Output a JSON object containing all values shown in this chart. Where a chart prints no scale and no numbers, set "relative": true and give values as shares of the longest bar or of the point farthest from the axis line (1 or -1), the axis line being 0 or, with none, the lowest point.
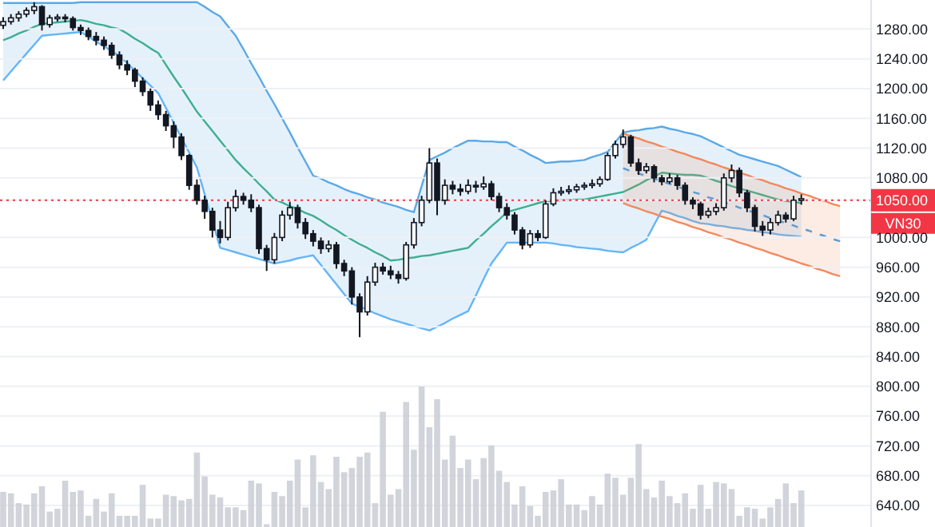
{
  "chart_data": [
    {
      "type": "candlestick",
      "categories": [
        null,
        null,
        null,
        null,
        null,
        null,
        null,
        null,
        null,
        null,
        null,
        null,
        null,
        null,
        null,
        null,
        null,
        null,
        null,
        null,
        null,
        null,
        null,
        null,
        null,
        null,
        null,
        null,
        null,
        null,
        null,
        null,
        null,
        null,
        null,
        null,
        null,
        null,
        null,
        null,
        null,
        null,
        null,
        null,
        null,
        null,
        null,
        null,
        null,
        null,
        null,
        null,
        null,
        null,
        null,
        null,
        null,
        null,
        null,
        null,
        null,
        null,
        null,
        null,
        null,
        null,
        null,
        null,
        null,
        null,
        null,
        null,
        null,
        null,
        null,
        null,
        null,
        null,
        null,
        null,
        null,
        null,
        null,
        null,
        null,
        null,
        null,
        null,
        null,
        null,
        null,
        null,
        null,
        null,
        null,
        null,
        null,
        null,
        null,
        null,
        null,
        null,
        null,
        null
      ],
      "ohlc": [
        [
          1285,
          1296,
          1280,
          1290
        ],
        [
          1290,
          1300,
          1286,
          1295
        ],
        [
          1295,
          1304,
          1290,
          1300
        ],
        [
          1300,
          1309,
          1296,
          1305
        ],
        [
          1305,
          1316,
          1300,
          1310
        ],
        [
          1310,
          1312,
          1278,
          1286
        ],
        [
          1286,
          1299,
          1282,
          1295
        ],
        [
          1295,
          1300,
          1290,
          1296
        ],
        [
          1296,
          1300,
          1289,
          1294
        ],
        [
          1294,
          1297,
          1278,
          1282
        ],
        [
          1282,
          1286,
          1272,
          1278
        ],
        [
          1278,
          1282,
          1265,
          1270
        ],
        [
          1270,
          1276,
          1258,
          1265
        ],
        [
          1265,
          1270,
          1252,
          1258
        ],
        [
          1258,
          1262,
          1240,
          1245
        ],
        [
          1245,
          1250,
          1226,
          1232
        ],
        [
          1232,
          1238,
          1218,
          1225
        ],
        [
          1225,
          1228,
          1202,
          1210
        ],
        [
          1210,
          1215,
          1190,
          1196
        ],
        [
          1196,
          1200,
          1170,
          1178
        ],
        [
          1178,
          1184,
          1158,
          1165
        ],
        [
          1165,
          1170,
          1143,
          1150
        ],
        [
          1150,
          1156,
          1120,
          1135
        ],
        [
          1135,
          1140,
          1104,
          1110
        ],
        [
          1110,
          1112,
          1064,
          1070
        ],
        [
          1070,
          1078,
          1044,
          1050
        ],
        [
          1050,
          1056,
          1025,
          1035
        ],
        [
          1035,
          1040,
          1000,
          1010
        ],
        [
          1010,
          1022,
          992,
          1000
        ],
        [
          1000,
          1048,
          996,
          1040
        ],
        [
          1040,
          1064,
          1035,
          1055
        ],
        [
          1055,
          1060,
          1044,
          1050
        ],
        [
          1050,
          1058,
          1034,
          1040
        ],
        [
          1040,
          1044,
          978,
          985
        ],
        [
          985,
          990,
          955,
          970
        ],
        [
          970,
          1006,
          965,
          1000
        ],
        [
          1000,
          1036,
          995,
          1030
        ],
        [
          1030,
          1048,
          1024,
          1040
        ],
        [
          1040,
          1044,
          1012,
          1020
        ],
        [
          1020,
          1026,
          998,
          1005
        ],
        [
          1005,
          1010,
          988,
          995
        ],
        [
          995,
          1000,
          978,
          985
        ],
        [
          985,
          996,
          980,
          990
        ],
        [
          990,
          994,
          958,
          965
        ],
        [
          965,
          970,
          948,
          955
        ],
        [
          955,
          960,
          910,
          920
        ],
        [
          920,
          925,
          866,
          900
        ],
        [
          900,
          948,
          895,
          940
        ],
        [
          940,
          966,
          935,
          960
        ],
        [
          960,
          966,
          950,
          955
        ],
        [
          955,
          962,
          944,
          950
        ],
        [
          950,
          955,
          938,
          945
        ],
        [
          945,
          994,
          942,
          990
        ],
        [
          990,
          1026,
          985,
          1020
        ],
        [
          1020,
          1056,
          1015,
          1050
        ],
        [
          1050,
          1120,
          1046,
          1100
        ],
        [
          1100,
          1106,
          1030,
          1050
        ],
        [
          1050,
          1078,
          1044,
          1070
        ],
        [
          1070,
          1076,
          1058,
          1065
        ],
        [
          1065,
          1072,
          1056,
          1062
        ],
        [
          1062,
          1078,
          1058,
          1070
        ],
        [
          1070,
          1076,
          1060,
          1068
        ],
        [
          1068,
          1082,
          1064,
          1072
        ],
        [
          1072,
          1076,
          1050,
          1055
        ],
        [
          1055,
          1060,
          1034,
          1040
        ],
        [
          1040,
          1046,
          1024,
          1030
        ],
        [
          1030,
          1034,
          1004,
          1010
        ],
        [
          1010,
          1014,
          984,
          990
        ],
        [
          990,
          1010,
          986,
          1005
        ],
        [
          1005,
          1010,
          995,
          1000
        ],
        [
          1000,
          1050,
          998,
          1045
        ],
        [
          1045,
          1066,
          1042,
          1060
        ],
        [
          1060,
          1068,
          1056,
          1062
        ],
        [
          1062,
          1070,
          1058,
          1064
        ],
        [
          1064,
          1072,
          1060,
          1068
        ],
        [
          1068,
          1074,
          1064,
          1070
        ],
        [
          1070,
          1078,
          1066,
          1072
        ],
        [
          1072,
          1082,
          1068,
          1078
        ],
        [
          1078,
          1114,
          1076,
          1110
        ],
        [
          1110,
          1130,
          1106,
          1125
        ],
        [
          1125,
          1145,
          1120,
          1135
        ],
        [
          1135,
          1138,
          1095,
          1100
        ],
        [
          1100,
          1106,
          1084,
          1090
        ],
        [
          1090,
          1100,
          1086,
          1095
        ],
        [
          1095,
          1098,
          1074,
          1080
        ],
        [
          1080,
          1084,
          1070,
          1075
        ],
        [
          1075,
          1086,
          1072,
          1080
        ],
        [
          1080,
          1084,
          1064,
          1070
        ],
        [
          1070,
          1074,
          1044,
          1050
        ],
        [
          1050,
          1054,
          1038,
          1045
        ],
        [
          1045,
          1048,
          1024,
          1030
        ],
        [
          1030,
          1040,
          1026,
          1035
        ],
        [
          1035,
          1046,
          1030,
          1040
        ],
        [
          1040,
          1086,
          1036,
          1080
        ],
        [
          1080,
          1098,
          1074,
          1090
        ],
        [
          1090,
          1094,
          1054,
          1060
        ],
        [
          1060,
          1064,
          1034,
          1040
        ],
        [
          1040,
          1044,
          1008,
          1015
        ],
        [
          1015,
          1022,
          1002,
          1010
        ],
        [
          1010,
          1026,
          1004,
          1020
        ],
        [
          1020,
          1036,
          1016,
          1030
        ],
        [
          1030,
          1034,
          1020,
          1025
        ],
        [
          1025,
          1056,
          1022,
          1050
        ],
        [
          1050,
          1058,
          1044,
          1052
        ]
      ],
      "ylim": [
        611,
        1319
      ],
      "yticks": [
        {
          "value": 640,
          "label": "640.00"
        },
        {
          "value": 680,
          "label": "680.00"
        },
        {
          "value": 720,
          "label": "720.00"
        },
        {
          "value": 760,
          "label": "760.00"
        },
        {
          "value": 800,
          "label": "800.00"
        },
        {
          "value": 840,
          "label": "840.00"
        },
        {
          "value": 880,
          "label": "880.00"
        },
        {
          "value": 920,
          "label": "920.00"
        },
        {
          "value": 960,
          "label": "960.00"
        },
        {
          "value": 1000,
          "label": "1000.00"
        },
        {
          "value": 1050,
          "label": "1050.00"
        },
        {
          "value": 1080,
          "label": "1080.00"
        },
        {
          "value": 1120,
          "label": "1120.00"
        },
        {
          "value": 1160,
          "label": "1160.00"
        },
        {
          "value": 1200,
          "label": "1200.00"
        },
        {
          "value": 1240,
          "label": "1240.00"
        },
        {
          "value": 1280,
          "label": "1280.00"
        }
      ],
      "ref_lines": [
        {
          "axis": "y",
          "value": 1050,
          "label": "VN30",
          "color": "#f23645",
          "line_style": "dotted"
        }
      ],
      "grid": "y",
      "tick_labels": "y"
    },
    {
      "type": "line",
      "categories": [
        null,
        null,
        null,
        null,
        null,
        null,
        null,
        null,
        null,
        null,
        null,
        null,
        null,
        null,
        null,
        null,
        null,
        null,
        null,
        null,
        null,
        null,
        null,
        null,
        null,
        null,
        null,
        null,
        null,
        null,
        null,
        null,
        null,
        null,
        null,
        null,
        null,
        null,
        null,
        null,
        null,
        null,
        null,
        null,
        null,
        null,
        null,
        null,
        null,
        null,
        null,
        null,
        null,
        null,
        null,
        null,
        null,
        null,
        null,
        null,
        null,
        null,
        null,
        null,
        null,
        null,
        null,
        null,
        null,
        null,
        null,
        null,
        null,
        null,
        null,
        null,
        null,
        null,
        null,
        null,
        null,
        null,
        null,
        null,
        null,
        null,
        null,
        null,
        null,
        null,
        null,
        null,
        null,
        null,
        null,
        null,
        null,
        null,
        null,
        null,
        null,
        null,
        null,
        null
      ],
      "ylim": [
        611,
        1319
      ],
      "tick_labels": false,
      "series": [
        {
          "color": "#5aa9e6",
          "values": [
            1315,
            1315,
            1315,
            1315,
            1315,
            1315,
            1315,
            1315,
            1315,
            1315,
            1316,
            1316,
            1316,
            1316,
            1316,
            1316,
            1316,
            1316,
            1316,
            1316,
            1316,
            1316,
            1316,
            1316,
            1316,
            1316,
            1310,
            1303,
            1297,
            1284,
            1271,
            1253,
            1234,
            1216,
            1197,
            1179,
            1160,
            1141,
            1121,
            1102,
            1083,
            1079,
            1074,
            1070,
            1065,
            1061,
            1058,
            1054,
            1051,
            1047,
            1044,
            1041,
            1037,
            1034,
            1069,
            1104,
            1109,
            1114,
            1120,
            1125,
            1130,
            1130,
            1129,
            1129,
            1128,
            1128,
            1122,
            1117,
            1111,
            1106,
            1100,
            1101,
            1102,
            1102,
            1103,
            1104,
            1108,
            1111,
            1115,
            1128,
            1141,
            1143,
            1144,
            1146,
            1147,
            1149,
            1146,
            1144,
            1141,
            1139,
            1136,
            1131,
            1126,
            1121,
            1116,
            1111,
            1108,
            1105,
            1102,
            1099,
            1096,
            1091,
            1086,
            1081
          ],
          "lower": [
            1211,
            1223,
            1235,
            1247,
            1259,
            1271,
            1272,
            1273,
            1274,
            1275,
            1276,
            1270,
            1263,
            1257,
            1250,
            1244,
            1234,
            1224,
            1214,
            1204,
            1194,
            1174,
            1154,
            1134,
            1114,
            1094,
            1058,
            1022,
            986,
            983,
            980,
            977,
            974,
            971,
            968,
            965,
            967,
            969,
            972,
            974,
            976,
            963,
            950,
            937,
            924,
            911,
            907,
            903,
            898,
            894,
            890,
            887,
            884,
            881,
            878,
            875,
            880,
            885,
            891,
            896,
            901,
            922,
            944,
            965,
            979,
            993,
            993,
            993,
            993,
            993,
            993,
            992,
            990,
            989,
            987,
            986,
            985,
            984,
            982,
            981,
            980,
            986,
            991,
            997,
            1017,
            1036,
            1033,
            1029,
            1026,
            1022,
            1019,
            1018,
            1016,
            1015,
            1013,
            1012,
            1010,
            1009,
            1007,
            1006,
            1004,
            1003,
            1002,
            1001
          ],
          "upper": [
            1315,
            1315,
            1315,
            1315,
            1315,
            1315,
            1315,
            1315,
            1315,
            1315,
            1316,
            1316,
            1316,
            1316,
            1316,
            1316,
            1316,
            1316,
            1316,
            1316,
            1316,
            1316,
            1316,
            1316,
            1316,
            1316,
            1310,
            1303,
            1297,
            1284,
            1271,
            1253,
            1234,
            1216,
            1197,
            1179,
            1160,
            1141,
            1121,
            1102,
            1083,
            1079,
            1074,
            1070,
            1065,
            1061,
            1058,
            1054,
            1051,
            1047,
            1044,
            1041,
            1037,
            1034,
            1069,
            1104,
            1109,
            1114,
            1120,
            1125,
            1130,
            1130,
            1129,
            1129,
            1128,
            1128,
            1122,
            1117,
            1111,
            1106,
            1100,
            1101,
            1102,
            1102,
            1103,
            1104,
            1108,
            1111,
            1115,
            1128,
            1141,
            1143,
            1144,
            1146,
            1147,
            1149,
            1146,
            1144,
            1141,
            1139,
            1136,
            1131,
            1126,
            1121,
            1116,
            1111,
            1108,
            1105,
            1102,
            1099,
            1096,
            1091,
            1086,
            1081
          ]
        },
        {
          "color": "#64b5f6",
          "values": [
            1211,
            1223,
            1235,
            1247,
            1259,
            1271,
            1272,
            1273,
            1274,
            1275,
            1276,
            1270,
            1263,
            1257,
            1250,
            1244,
            1234,
            1224,
            1214,
            1204,
            1194,
            1174,
            1154,
            1134,
            1114,
            1094,
            1058,
            1022,
            986,
            983,
            980,
            977,
            974,
            971,
            968,
            965,
            967,
            969,
            972,
            974,
            976,
            963,
            950,
            937,
            924,
            911,
            907,
            903,
            898,
            894,
            890,
            887,
            884,
            881,
            878,
            875,
            880,
            885,
            891,
            896,
            901,
            922,
            944,
            965,
            979,
            993,
            993,
            993,
            993,
            993,
            993,
            992,
            990,
            989,
            987,
            986,
            985,
            984,
            982,
            981,
            980,
            986,
            991,
            997,
            1017,
            1036,
            1033,
            1029,
            1026,
            1022,
            1019,
            1018,
            1016,
            1015,
            1013,
            1012,
            1010,
            1009,
            1007,
            1006,
            1004,
            1003,
            1002,
            1001
          ]
        },
        {
          "color": "#3fae8f",
          "values": [
            1265,
            1269,
            1274,
            1278,
            1283,
            1287,
            1288,
            1289,
            1290,
            1291,
            1292,
            1290,
            1287,
            1285,
            1282,
            1280,
            1274,
            1267,
            1261,
            1254,
            1248,
            1232,
            1216,
            1201,
            1185,
            1169,
            1156,
            1143,
            1130,
            1117,
            1104,
            1093,
            1083,
            1072,
            1062,
            1051,
            1047,
            1042,
            1038,
            1033,
            1029,
            1023,
            1016,
            1010,
            1003,
            997,
            991,
            986,
            980,
            975,
            969,
            970,
            972,
            973,
            975,
            976,
            978,
            980,
            982,
            984,
            986,
            996,
            1005,
            1015,
            1024,
            1034,
            1037,
            1040,
            1043,
            1046,
            1049,
            1049,
            1050,
            1050,
            1051,
            1051,
            1053,
            1055,
            1057,
            1059,
            1061,
            1066,
            1071,
            1077,
            1082,
            1087,
            1086,
            1085,
            1084,
            1084,
            1083,
            1080,
            1076,
            1073,
            1069,
            1066,
            1063,
            1060,
            1057,
            1054,
            1051,
            1049,
            1048,
            1046
          ]
        }
      ]
    },
    {
      "type": "line",
      "categories": [
        null,
        null,
        null,
        null,
        null,
        null,
        null,
        null,
        null,
        null,
        null,
        null,
        null,
        null,
        null,
        null,
        null,
        null,
        null,
        null,
        null,
        null,
        null,
        null,
        null,
        null,
        null,
        null,
        null
      ],
      "ylim": [
        611,
        1319
      ],
      "tick_labels": false,
      "series": [
        {
          "color": "#f4875a",
          "values": [
            1140,
            1136,
            1133,
            1129,
            1126,
            1122,
            1119,
            1115,
            1112,
            1108,
            1105,
            1101,
            1098,
            1094,
            1091,
            1087,
            1084,
            1080,
            1077,
            1073,
            1070,
            1066,
            1063,
            1059,
            1056,
            1052,
            1049,
            1045,
            1042
          ],
          "lower": [
            1046,
            1042,
            1039,
            1035,
            1032,
            1028,
            1025,
            1021,
            1018,
            1014,
            1011,
            1007,
            1004,
            1000,
            997,
            993,
            990,
            986,
            983,
            979,
            976,
            972,
            969,
            965,
            962,
            958,
            955,
            951,
            948
          ],
          "upper": [
            1140,
            1136,
            1133,
            1129,
            1126,
            1122,
            1119,
            1115,
            1112,
            1108,
            1105,
            1101,
            1098,
            1094,
            1091,
            1087,
            1084,
            1080,
            1077,
            1073,
            1070,
            1066,
            1063,
            1059,
            1056,
            1052,
            1049,
            1045,
            1042
          ]
        },
        {
          "color": "#f08a60",
          "values": [
            1046,
            1042,
            1039,
            1035,
            1032,
            1028,
            1025,
            1021,
            1018,
            1014,
            1011,
            1007,
            1004,
            1000,
            997,
            993,
            990,
            986,
            983,
            979,
            976,
            972,
            969,
            965,
            962,
            958,
            955,
            951,
            948
          ]
        },
        {
          "color": "#5b9bd5",
          "line_style": "dashed",
          "values": [
            1093,
            1089,
            1086,
            1082,
            1079,
            1075,
            1072,
            1068,
            1065,
            1061,
            1058,
            1054,
            1051,
            1047,
            1044,
            1040,
            1037,
            1033,
            1030,
            1026,
            1023,
            1019,
            1016,
            1012,
            1009,
            1005,
            1002,
            998,
            995
          ]
        }
      ]
    },
    {
      "type": "bar",
      "relative": true,
      "color": "#c9ccd3",
      "categories": [
        null,
        null,
        null,
        null,
        null,
        null,
        null,
        null,
        null,
        null,
        null,
        null,
        null,
        null,
        null,
        null,
        null,
        null,
        null,
        null,
        null,
        null,
        null,
        null,
        null,
        null,
        null,
        null,
        null,
        null,
        null,
        null,
        null,
        null,
        null,
        null,
        null,
        null,
        null,
        null,
        null,
        null,
        null,
        null,
        null,
        null,
        null,
        null,
        null,
        null,
        null,
        null,
        null,
        null,
        null,
        null,
        null,
        null,
        null,
        null,
        null,
        null,
        null,
        null,
        null,
        null,
        null,
        null,
        null,
        null,
        null,
        null,
        null,
        null,
        null,
        null,
        null,
        null,
        null,
        null,
        null,
        null,
        null,
        null,
        null,
        null,
        null,
        null,
        null,
        null,
        null,
        null,
        null,
        null,
        null,
        null,
        null,
        null,
        null,
        null,
        null,
        null,
        null,
        null
      ],
      "values": [
        0.25,
        0.24,
        0.17,
        0.16,
        0.24,
        0.29,
        0.11,
        0.13,
        0.33,
        0.25,
        0.26,
        0.08,
        0.2,
        0.11,
        0.24,
        0.08,
        0.08,
        0.08,
        0.3,
        0.06,
        0.06,
        0.23,
        0.22,
        0.19,
        0.2,
        0.53,
        0.36,
        0.23,
        0.21,
        0.14,
        0.14,
        0.12,
        0.33,
        0.31,
        0.02,
        0.25,
        0.22,
        0.33,
        0.48,
        0.14,
        0.51,
        0.32,
        0.27,
        0.5,
        0.39,
        0.42,
        0.5,
        0.53,
        0.17,
        0.82,
        0.23,
        0.27,
        0.89,
        0.55,
        1,
        0.71,
        0.91,
        0.48,
        0.65,
        0.42,
        0.48,
        0.34,
        0.49,
        0.58,
        0.4,
        0.32,
        0.16,
        0.29,
        0.15,
        0.08,
        0.25,
        0.26,
        0.34,
        0.16,
        0.16,
        0.12,
        0.22,
        0.16,
        0.38,
        0.35,
        0.23,
        0.35,
        0.59,
        0.27,
        0.21,
        0.33,
        0.22,
        0.17,
        0.24,
        0.13,
        0.3,
        0.13,
        0.32,
        0.31,
        0.27,
        0.08,
        0.14,
        0.13,
        0.06,
        0.14,
        0.2,
        0.31,
        0.17,
        0.26
      ]
    }
  ]
}
